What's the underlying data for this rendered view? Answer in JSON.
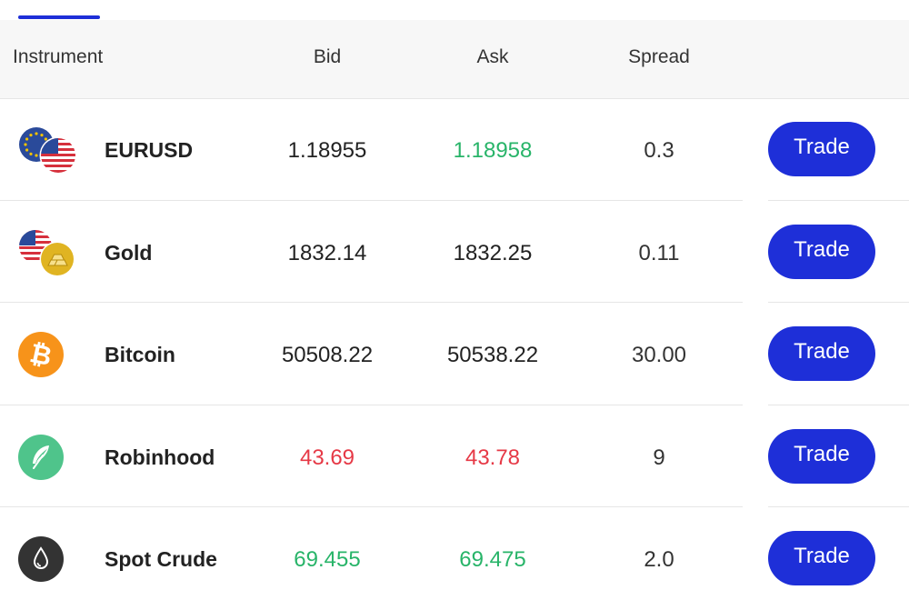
{
  "header": {
    "instrument": "Instrument",
    "bid": "Bid",
    "ask": "Ask",
    "spread": "Spread"
  },
  "colors": {
    "accent": "#1e2fd8",
    "up": "#28b469",
    "down": "#e63946"
  },
  "rows": [
    {
      "name": "EURUSD",
      "icon": "eur-usd-flags-icon",
      "bid": "1.18955",
      "ask": "1.18958",
      "spread": "0.3",
      "bid_color": "default",
      "ask_color": "green",
      "action": "Trade"
    },
    {
      "name": "Gold",
      "icon": "usd-gold-icon",
      "bid": "1832.14",
      "ask": "1832.25",
      "spread": "0.11",
      "bid_color": "default",
      "ask_color": "default",
      "action": "Trade"
    },
    {
      "name": "Bitcoin",
      "icon": "bitcoin-icon",
      "bid": "50508.22",
      "ask": "50538.22",
      "spread": "30.00",
      "bid_color": "default",
      "ask_color": "default",
      "action": "Trade"
    },
    {
      "name": "Robinhood",
      "icon": "feather-icon",
      "bid": "43.69",
      "ask": "43.78",
      "spread": "9",
      "bid_color": "red",
      "ask_color": "red",
      "action": "Trade"
    },
    {
      "name": "Spot Crude",
      "icon": "oil-drop-icon",
      "bid": "69.455",
      "ask": "69.475",
      "spread": "2.0",
      "bid_color": "green",
      "ask_color": "green",
      "action": "Trade"
    }
  ]
}
